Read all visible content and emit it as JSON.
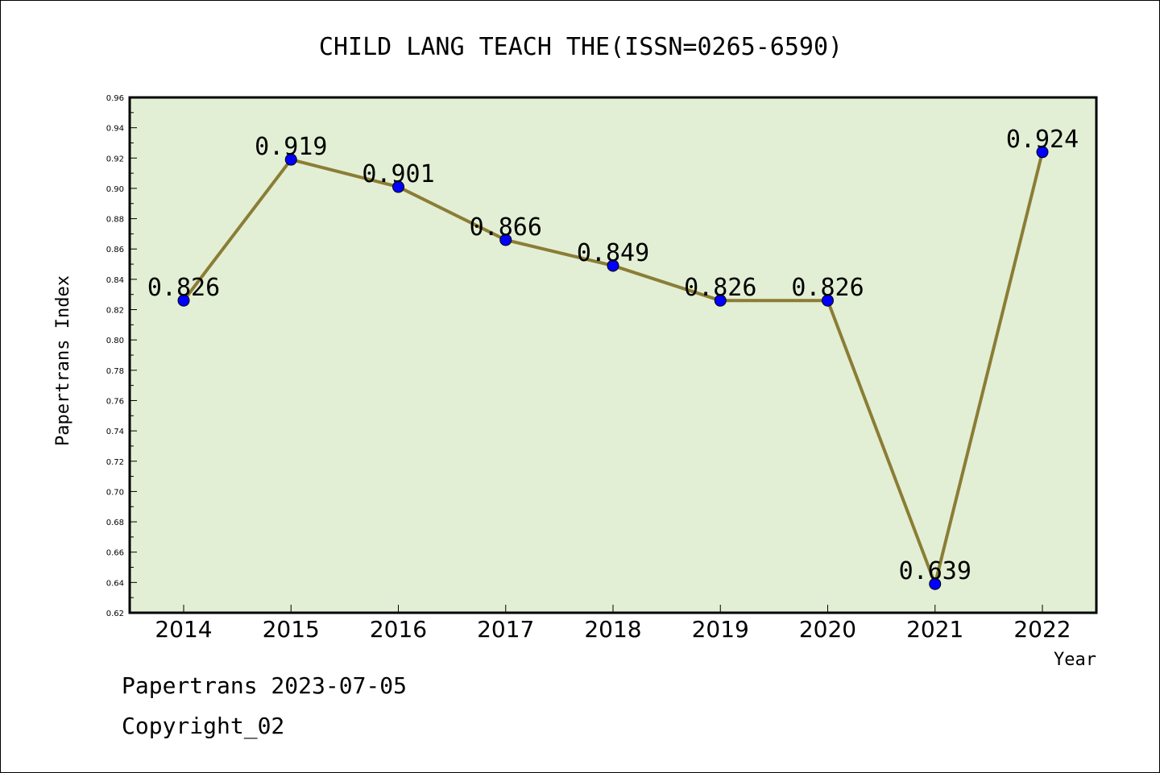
{
  "colors": {
    "plot_background": "#e2efd5",
    "line": "#8b7d35",
    "marker": "#0000ff",
    "axis": "#000000"
  },
  "footer": {
    "line1": "Papertrans 2023-07-05",
    "line2": "Copyright_02"
  },
  "chart_data": {
    "type": "line",
    "title": "CHILD LANG TEACH THE(ISSN=0265-6590)",
    "xlabel": "Year",
    "ylabel": "Papertrans Index",
    "categories": [
      "2014",
      "2015",
      "2016",
      "2017",
      "2018",
      "2019",
      "2020",
      "2021",
      "2022"
    ],
    "values": [
      0.826,
      0.919,
      0.901,
      0.866,
      0.849,
      0.826,
      0.826,
      0.639,
      0.924
    ],
    "data_labels": [
      "0.826",
      "0.919",
      "0.901",
      "0.866",
      "0.849",
      "0.826",
      "0.826",
      "0.639",
      "0.924"
    ],
    "ylim": [
      0.62,
      0.96
    ],
    "yticks": [
      "0.62",
      "0.64",
      "0.66",
      "0.68",
      "0.70",
      "0.72",
      "0.74",
      "0.76",
      "0.78",
      "0.80",
      "0.82",
      "0.84",
      "0.86",
      "0.88",
      "0.90",
      "0.92",
      "0.94",
      "0.96"
    ],
    "grid": false,
    "legend": "none"
  }
}
